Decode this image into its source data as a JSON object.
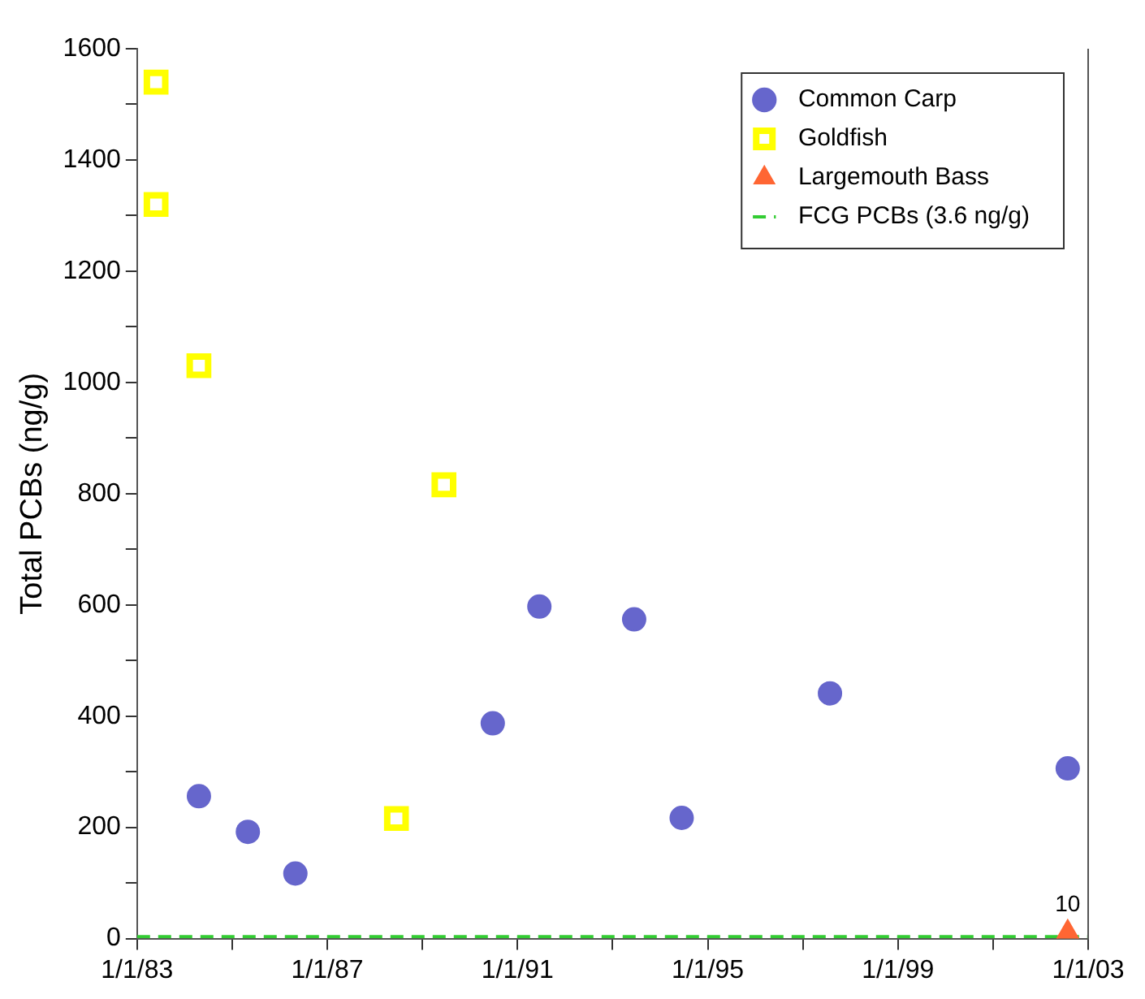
{
  "chart_data": {
    "type": "scatter",
    "ylabel": "Total PCBs (ng/g)",
    "xlim": [
      "1983-01-01",
      "2003-01-01"
    ],
    "xticks": [
      {
        "value": "1983-01-01",
        "label": "1/1/83"
      },
      {
        "value": "1985-01-01",
        "label": null
      },
      {
        "value": "1987-01-01",
        "label": "1/1/87"
      },
      {
        "value": "1989-01-01",
        "label": null
      },
      {
        "value": "1991-01-01",
        "label": "1/1/91"
      },
      {
        "value": "1993-01-01",
        "label": null
      },
      {
        "value": "1995-01-01",
        "label": "1/1/95"
      },
      {
        "value": "1997-01-01",
        "label": null
      },
      {
        "value": "1999-01-01",
        "label": "1/1/99"
      },
      {
        "value": "2001-01-01",
        "label": null
      },
      {
        "value": "2003-01-01",
        "label": "1/1/03"
      }
    ],
    "ylim": [
      0,
      1600
    ],
    "yticks": [
      0,
      {
        "value": 100,
        "label": null
      },
      200,
      {
        "value": 300,
        "label": null
      },
      400,
      {
        "value": 500,
        "label": null
      },
      600,
      {
        "value": 700,
        "label": null
      },
      800,
      {
        "value": 900,
        "label": null
      },
      1000,
      {
        "value": 1100,
        "label": null
      },
      1200,
      {
        "value": 1300,
        "label": null
      },
      1400,
      {
        "value": 1500,
        "label": null
      },
      1600
    ],
    "grid": false,
    "legend": "top right",
    "series": [
      {
        "name": "Common Carp",
        "color": "#6666cc",
        "marker": "circle",
        "x": [
          "1984-04-20",
          "1985-05-01",
          "1986-05-01",
          "1990-06-25",
          "1991-06-18",
          "1993-06-15",
          "1994-06-15",
          "1997-07-28",
          "2002-07-28"
        ],
        "values": [
          256,
          192,
          117,
          387,
          597,
          574,
          217,
          441,
          306
        ]
      },
      {
        "name": "Goldfish",
        "color": "#ffff00",
        "marker": "square",
        "x": [
          "1983-05-27",
          "1983-05-27",
          "1984-04-20",
          "1988-06-15",
          "1989-06-15"
        ],
        "values": [
          1540,
          1320,
          1030,
          216,
          816
        ]
      },
      {
        "name": "Largemouth Bass",
        "color": "#ff6633",
        "marker": "triangle",
        "x": [
          "2002-07-28"
        ],
        "values": [
          10
        ],
        "value_labels": [
          "10"
        ]
      }
    ],
    "ref_lines": [
      {
        "axis": "y",
        "value": 3.6,
        "label": "FCG PCBs (3.6 ng/g)",
        "color": "#33cc33",
        "line_style": "dashed"
      }
    ]
  }
}
